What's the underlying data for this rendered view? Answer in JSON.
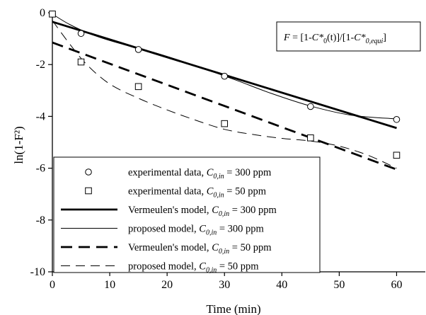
{
  "chart_data": {
    "type": "line",
    "xlabel": "Time (min)",
    "ylabel": "ln(1-F²)",
    "xlim": [
      0,
      65
    ],
    "ylim": [
      -10,
      0
    ],
    "xticks": [
      0,
      10,
      20,
      30,
      40,
      50,
      60
    ],
    "yticks": [
      0,
      -2,
      -4,
      -6,
      -8,
      -10
    ],
    "grid": false,
    "legend_placement": "bottom-left",
    "annotation": {
      "parts": [
        "F = [1-C*",
        "0",
        "(t)]/[1-C*",
        "0,equi",
        "]"
      ]
    },
    "series": [
      {
        "kind": "scatter",
        "marker": "circle",
        "legend_text": "experimental data, ",
        "legend_sub": "0,in",
        "legend_tail": " = 300 ppm",
        "points": [
          [
            0,
            -0.05
          ],
          [
            5,
            -0.8
          ],
          [
            15,
            -1.42
          ],
          [
            30,
            -2.45
          ],
          [
            45,
            -3.62
          ],
          [
            60,
            -4.12
          ]
        ]
      },
      {
        "kind": "scatter",
        "marker": "square",
        "legend_text": "experimental data, ",
        "legend_sub": "0,in",
        "legend_tail": " = 50 ppm",
        "points": [
          [
            0,
            -0.05
          ],
          [
            5,
            -1.9
          ],
          [
            15,
            -2.85
          ],
          [
            30,
            -4.28
          ],
          [
            45,
            -4.83
          ],
          [
            60,
            -5.5
          ]
        ]
      },
      {
        "kind": "line",
        "style": "thick-solid",
        "legend_text": "Vermeulen's model, ",
        "legend_sub": "0,in",
        "legend_tail": " = 300 ppm",
        "points": [
          [
            0,
            -0.35
          ],
          [
            60,
            -4.45
          ]
        ]
      },
      {
        "kind": "line",
        "style": "thin-solid",
        "legend_text": "proposed model, ",
        "legend_sub": "0,in",
        "legend_tail": " = 300 ppm",
        "points": [
          [
            0,
            -0.05
          ],
          [
            3,
            -0.45
          ],
          [
            7,
            -0.85
          ],
          [
            12,
            -1.2
          ],
          [
            18,
            -1.55
          ],
          [
            25,
            -2.05
          ],
          [
            32,
            -2.6
          ],
          [
            38,
            -3.1
          ],
          [
            45,
            -3.6
          ],
          [
            52,
            -3.95
          ],
          [
            60,
            -4.1
          ]
        ]
      },
      {
        "kind": "line",
        "style": "thick-dashed",
        "legend_text": "Vermeulen's model, ",
        "legend_sub": "0,in",
        "legend_tail": " = 50 ppm",
        "points": [
          [
            0,
            -1.15
          ],
          [
            60,
            -6.05
          ]
        ]
      },
      {
        "kind": "line",
        "style": "thin-dashed",
        "legend_text": "proposed model, ",
        "legend_sub": "0,in",
        "legend_tail": " = 50 ppm",
        "points": [
          [
            0,
            -0.3
          ],
          [
            3,
            -1.2
          ],
          [
            6,
            -2.0
          ],
          [
            10,
            -2.75
          ],
          [
            15,
            -3.3
          ],
          [
            20,
            -3.75
          ],
          [
            25,
            -4.15
          ],
          [
            30,
            -4.5
          ],
          [
            35,
            -4.7
          ],
          [
            40,
            -4.85
          ],
          [
            45,
            -4.95
          ],
          [
            50,
            -5.15
          ],
          [
            55,
            -5.5
          ],
          [
            60,
            -6.0
          ]
        ]
      }
    ]
  }
}
